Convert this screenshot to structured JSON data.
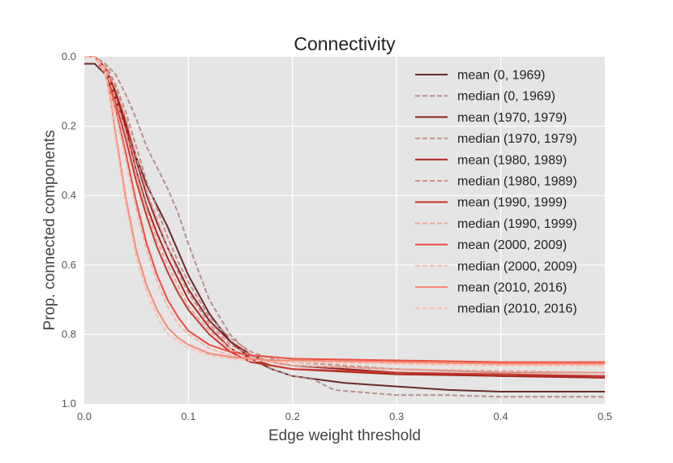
{
  "chart_data": {
    "type": "line",
    "title": "Connectivity",
    "xlabel": "Edge weight threshold",
    "ylabel": "Prop. connected components",
    "xlim": [
      0.0,
      0.5
    ],
    "ylim": [
      0.0,
      1.0
    ],
    "y_inverted": true,
    "grid": true,
    "legend_position": "upper-right",
    "xticks": [
      0.0,
      0.1,
      0.2,
      0.3,
      0.4,
      0.5
    ],
    "xtick_labels": [
      "0.0",
      "0.1",
      "0.2",
      "0.3",
      "0.4",
      "0.5"
    ],
    "yticks": [
      0.0,
      0.2,
      0.4,
      0.6,
      0.8,
      1.0
    ],
    "ytick_labels": [
      "0.0",
      "0.2",
      "0.4",
      "0.6",
      "0.8",
      "1.0"
    ],
    "series": [
      {
        "name": "mean (0, 1969)",
        "color": "#6b2a2a",
        "dashed": false,
        "x": [
          0,
          0.01,
          0.02,
          0.03,
          0.04,
          0.05,
          0.06,
          0.07,
          0.08,
          0.09,
          0.1,
          0.12,
          0.14,
          0.16,
          0.18,
          0.2,
          0.25,
          0.3,
          0.35,
          0.4,
          0.5
        ],
        "y": [
          0.02,
          0.02,
          0.05,
          0.12,
          0.2,
          0.29,
          0.37,
          0.43,
          0.49,
          0.56,
          0.63,
          0.74,
          0.82,
          0.87,
          0.9,
          0.92,
          0.94,
          0.95,
          0.96,
          0.965,
          0.965
        ]
      },
      {
        "name": "median (0, 1969)",
        "color": "#b58f8c",
        "dashed": true,
        "x": [
          0,
          0.01,
          0.02,
          0.03,
          0.04,
          0.05,
          0.06,
          0.07,
          0.08,
          0.09,
          0.1,
          0.11,
          0.12,
          0.14,
          0.16,
          0.18,
          0.2,
          0.22,
          0.24,
          0.28,
          0.3,
          0.35,
          0.4,
          0.5
        ],
        "y": [
          0.0,
          0.0,
          0.02,
          0.05,
          0.11,
          0.18,
          0.26,
          0.32,
          0.38,
          0.45,
          0.54,
          0.62,
          0.7,
          0.8,
          0.86,
          0.9,
          0.92,
          0.93,
          0.96,
          0.97,
          0.975,
          0.975,
          0.98,
          0.98
        ]
      },
      {
        "name": "mean (1970, 1979)",
        "color": "#8c2424",
        "dashed": false,
        "x": [
          0,
          0.01,
          0.02,
          0.03,
          0.04,
          0.05,
          0.06,
          0.07,
          0.08,
          0.09,
          0.1,
          0.12,
          0.14,
          0.16,
          0.18,
          0.2,
          0.3,
          0.4,
          0.5
        ],
        "y": [
          0.0,
          0.0,
          0.03,
          0.1,
          0.19,
          0.3,
          0.4,
          0.48,
          0.55,
          0.61,
          0.67,
          0.76,
          0.82,
          0.86,
          0.88,
          0.89,
          0.91,
          0.92,
          0.92
        ]
      },
      {
        "name": "median (1970, 1979)",
        "color": "#c1908a",
        "dashed": true,
        "x": [
          0,
          0.01,
          0.02,
          0.03,
          0.04,
          0.05,
          0.06,
          0.07,
          0.08,
          0.09,
          0.1,
          0.12,
          0.14,
          0.16,
          0.18,
          0.2,
          0.3,
          0.4,
          0.5
        ],
        "y": [
          0.0,
          0.0,
          0.02,
          0.08,
          0.16,
          0.26,
          0.36,
          0.44,
          0.52,
          0.59,
          0.65,
          0.75,
          0.81,
          0.85,
          0.87,
          0.88,
          0.9,
          0.91,
          0.91
        ]
      },
      {
        "name": "mean (1980, 1989)",
        "color": "#a82a22",
        "dashed": false,
        "x": [
          0,
          0.01,
          0.02,
          0.03,
          0.04,
          0.05,
          0.06,
          0.07,
          0.08,
          0.09,
          0.1,
          0.12,
          0.14,
          0.16,
          0.18,
          0.2,
          0.3,
          0.4,
          0.5
        ],
        "y": [
          0.0,
          0.0,
          0.03,
          0.11,
          0.21,
          0.33,
          0.43,
          0.51,
          0.58,
          0.64,
          0.7,
          0.78,
          0.84,
          0.87,
          0.89,
          0.9,
          0.915,
          0.92,
          0.925
        ]
      },
      {
        "name": "median (1980, 1989)",
        "color": "#d48e86",
        "dashed": true,
        "x": [
          0,
          0.01,
          0.02,
          0.03,
          0.04,
          0.05,
          0.06,
          0.07,
          0.08,
          0.09,
          0.1,
          0.12,
          0.14,
          0.16,
          0.18,
          0.2,
          0.3,
          0.4,
          0.5
        ],
        "y": [
          0.0,
          0.0,
          0.03,
          0.09,
          0.18,
          0.29,
          0.39,
          0.47,
          0.55,
          0.62,
          0.68,
          0.77,
          0.83,
          0.86,
          0.88,
          0.89,
          0.9,
          0.91,
          0.91
        ]
      },
      {
        "name": "mean (1990, 1999)",
        "color": "#c9372b",
        "dashed": false,
        "x": [
          0,
          0.01,
          0.02,
          0.03,
          0.04,
          0.05,
          0.06,
          0.07,
          0.08,
          0.09,
          0.1,
          0.12,
          0.14,
          0.16,
          0.18,
          0.2,
          0.3,
          0.4,
          0.5
        ],
        "y": [
          0.0,
          0.0,
          0.04,
          0.13,
          0.24,
          0.36,
          0.46,
          0.55,
          0.62,
          0.68,
          0.73,
          0.8,
          0.85,
          0.88,
          0.89,
          0.9,
          0.91,
          0.915,
          0.92
        ]
      },
      {
        "name": "median (1990, 1999)",
        "color": "#eea59a",
        "dashed": true,
        "x": [
          0,
          0.01,
          0.02,
          0.03,
          0.04,
          0.05,
          0.06,
          0.07,
          0.08,
          0.09,
          0.1,
          0.12,
          0.14,
          0.16,
          0.18,
          0.2,
          0.3,
          0.4,
          0.5
        ],
        "y": [
          0.0,
          0.0,
          0.03,
          0.12,
          0.22,
          0.34,
          0.44,
          0.53,
          0.6,
          0.66,
          0.72,
          0.79,
          0.84,
          0.87,
          0.88,
          0.89,
          0.9,
          0.905,
          0.91
        ]
      },
      {
        "name": "mean (2000, 2009)",
        "color": "#ea4d3f",
        "dashed": false,
        "x": [
          0,
          0.01,
          0.02,
          0.03,
          0.04,
          0.05,
          0.06,
          0.07,
          0.08,
          0.09,
          0.1,
          0.12,
          0.14,
          0.16,
          0.18,
          0.2,
          0.3,
          0.4,
          0.5
        ],
        "y": [
          0.0,
          0.0,
          0.05,
          0.15,
          0.28,
          0.42,
          0.54,
          0.63,
          0.7,
          0.75,
          0.79,
          0.83,
          0.85,
          0.86,
          0.865,
          0.87,
          0.875,
          0.88,
          0.88
        ]
      },
      {
        "name": "median (2000, 2009)",
        "color": "#f6b8ad",
        "dashed": true,
        "x": [
          0,
          0.01,
          0.02,
          0.03,
          0.04,
          0.05,
          0.06,
          0.07,
          0.08,
          0.09,
          0.1,
          0.12,
          0.14,
          0.16,
          0.18,
          0.2,
          0.3,
          0.4,
          0.5
        ],
        "y": [
          0.0,
          0.0,
          0.05,
          0.16,
          0.3,
          0.44,
          0.56,
          0.65,
          0.72,
          0.77,
          0.8,
          0.84,
          0.86,
          0.87,
          0.875,
          0.88,
          0.885,
          0.89,
          0.89
        ]
      },
      {
        "name": "mean (2010, 2016)",
        "color": "#f58a74",
        "dashed": false,
        "x": [
          0,
          0.01,
          0.02,
          0.025,
          0.03,
          0.04,
          0.05,
          0.06,
          0.07,
          0.08,
          0.09,
          0.1,
          0.12,
          0.14,
          0.16,
          0.18,
          0.2,
          0.3,
          0.4,
          0.5
        ],
        "y": [
          0.0,
          0.0,
          0.04,
          0.12,
          0.22,
          0.41,
          0.56,
          0.66,
          0.73,
          0.78,
          0.81,
          0.83,
          0.855,
          0.865,
          0.87,
          0.875,
          0.875,
          0.88,
          0.885,
          0.885
        ]
      },
      {
        "name": "median (2010, 2016)",
        "color": "#f9c2b4",
        "dashed": true,
        "x": [
          0,
          0.01,
          0.02,
          0.025,
          0.03,
          0.04,
          0.05,
          0.06,
          0.07,
          0.08,
          0.09,
          0.1,
          0.12,
          0.14,
          0.16,
          0.18,
          0.2,
          0.3,
          0.4,
          0.5
        ],
        "y": [
          0.0,
          0.0,
          0.04,
          0.13,
          0.24,
          0.43,
          0.58,
          0.68,
          0.75,
          0.8,
          0.82,
          0.84,
          0.86,
          0.87,
          0.875,
          0.88,
          0.88,
          0.885,
          0.89,
          0.89
        ]
      }
    ]
  }
}
